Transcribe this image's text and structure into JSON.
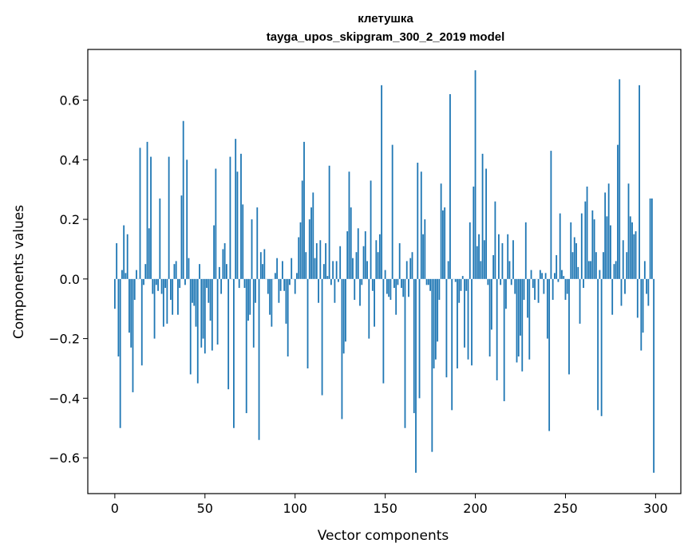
{
  "chart_data": {
    "type": "bar",
    "title": "клетушка",
    "subtitle": "tayga_upos_skipgram_300_2_2019 model",
    "xlabel": "Vector components",
    "ylabel": "Components values",
    "xlim": [
      -15,
      314
    ],
    "ylim": [
      -0.72,
      0.77
    ],
    "xticks": [
      0,
      50,
      100,
      150,
      200,
      250,
      300
    ],
    "xtick_labels": [
      "0",
      "50",
      "100",
      "150",
      "200",
      "250",
      "300"
    ],
    "yticks": [
      -0.6,
      -0.4,
      -0.2,
      0.0,
      0.2,
      0.4,
      0.6
    ],
    "ytick_labels": [
      "−0.6",
      "−0.4",
      "−0.2",
      "0.0",
      "0.2",
      "0.4",
      "0.6"
    ],
    "bar_color": "#1f77b4",
    "grid": false,
    "values": [
      -0.1,
      0.12,
      -0.26,
      -0.5,
      0.03,
      0.18,
      0.02,
      0.15,
      -0.18,
      -0.23,
      -0.38,
      -0.07,
      0.03,
      0.0,
      0.44,
      -0.29,
      -0.02,
      0.05,
      0.46,
      0.17,
      0.41,
      -0.05,
      -0.2,
      -0.02,
      -0.04,
      0.27,
      -0.05,
      -0.16,
      -0.03,
      -0.15,
      0.41,
      -0.07,
      -0.12,
      0.05,
      0.06,
      -0.12,
      -0.03,
      0.28,
      0.53,
      -0.02,
      0.4,
      0.07,
      -0.32,
      -0.08,
      -0.09,
      -0.16,
      -0.35,
      0.05,
      -0.23,
      -0.2,
      -0.25,
      -0.03,
      -0.08,
      -0.14,
      -0.24,
      0.18,
      0.37,
      -0.22,
      0.04,
      -0.05,
      0.1,
      0.12,
      0.05,
      -0.37,
      0.41,
      0.0,
      -0.5,
      0.47,
      0.36,
      -0.03,
      0.42,
      0.25,
      -0.03,
      -0.45,
      -0.14,
      -0.12,
      0.2,
      -0.23,
      -0.08,
      0.24,
      -0.54,
      0.09,
      0.05,
      0.1,
      0.0,
      -0.05,
      -0.12,
      -0.16,
      0.0,
      0.02,
      0.07,
      -0.08,
      -0.04,
      0.06,
      -0.04,
      -0.15,
      -0.26,
      -0.02,
      0.07,
      0.0,
      -0.05,
      0.02,
      0.14,
      0.19,
      0.33,
      0.46,
      0.09,
      -0.3,
      0.2,
      0.24,
      0.29,
      0.07,
      0.12,
      -0.08,
      0.13,
      -0.39,
      0.05,
      0.12,
      0.01,
      0.38,
      -0.02,
      0.06,
      -0.08,
      0.06,
      -0.01,
      0.11,
      -0.47,
      -0.25,
      -0.21,
      0.16,
      0.36,
      0.24,
      0.07,
      -0.07,
      0.09,
      0.17,
      -0.09,
      -0.02,
      0.11,
      0.16,
      0.06,
      -0.2,
      0.33,
      -0.04,
      -0.16,
      0.13,
      0.09,
      0.15,
      0.65,
      -0.35,
      0.03,
      -0.05,
      -0.06,
      -0.07,
      0.45,
      -0.03,
      -0.12,
      -0.02,
      0.12,
      -0.03,
      -0.06,
      -0.5,
      0.06,
      -0.06,
      0.07,
      0.09,
      -0.45,
      -0.65,
      0.39,
      -0.4,
      0.36,
      0.15,
      0.2,
      -0.02,
      -0.02,
      -0.04,
      -0.58,
      -0.3,
      -0.27,
      -0.21,
      -0.07,
      0.32,
      0.23,
      0.24,
      -0.33,
      0.06,
      0.62,
      -0.44,
      0.0,
      -0.01,
      -0.3,
      -0.08,
      -0.04,
      0.01,
      -0.23,
      -0.04,
      -0.27,
      0.19,
      -0.29,
      0.31,
      0.7,
      0.11,
      0.15,
      0.06,
      0.42,
      0.13,
      0.37,
      -0.02,
      -0.26,
      -0.17,
      0.08,
      0.26,
      -0.34,
      0.15,
      -0.02,
      0.12,
      -0.41,
      -0.1,
      0.15,
      0.06,
      -0.02,
      0.13,
      -0.05,
      -0.28,
      -0.26,
      -0.19,
      -0.31,
      -0.07,
      0.19,
      -0.13,
      -0.27,
      0.03,
      -0.03,
      -0.07,
      0.0,
      -0.08,
      0.03,
      0.02,
      -0.05,
      0.02,
      -0.2,
      -0.51,
      0.43,
      -0.07,
      0.02,
      0.08,
      -0.01,
      0.22,
      0.03,
      0.01,
      -0.07,
      -0.05,
      -0.32,
      0.19,
      0.09,
      0.14,
      0.12,
      0.04,
      -0.15,
      0.22,
      -0.03,
      0.26,
      0.31,
      0.06,
      0.06,
      0.23,
      0.2,
      0.09,
      -0.44,
      0.03,
      -0.46,
      0.09,
      0.29,
      0.21,
      0.32,
      0.18,
      -0.12,
      0.05,
      0.06,
      0.45,
      0.67,
      -0.09,
      0.13,
      -0.05,
      0.09,
      0.32,
      0.21,
      0.19,
      0.15,
      0.16,
      -0.13,
      0.65,
      -0.24,
      -0.18,
      0.06,
      -0.05,
      -0.09,
      0.27,
      0.27,
      -0.65
    ]
  }
}
